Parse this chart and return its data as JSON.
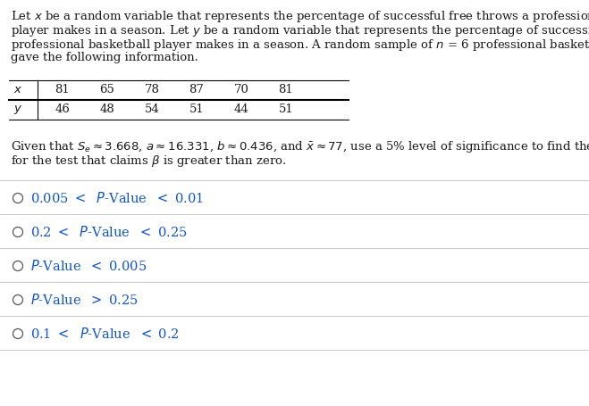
{
  "x_values": [
    81,
    65,
    78,
    87,
    70,
    81
  ],
  "y_values": [
    46,
    48,
    54,
    51,
    44,
    51
  ],
  "options": [
    "0.005 <  P-Value  < 0.01",
    "0.2 <  P-Value  < 0.25",
    "P-Value  < 0.005",
    "P-Value  > 0.25",
    "0.1 <  P-Value  < 0.2"
  ],
  "bg_color": "#ffffff",
  "text_color": "#1a1a1a",
  "option_text_color": "#1155cc",
  "fig_width": 6.59,
  "fig_height": 4.55,
  "dpi": 100
}
